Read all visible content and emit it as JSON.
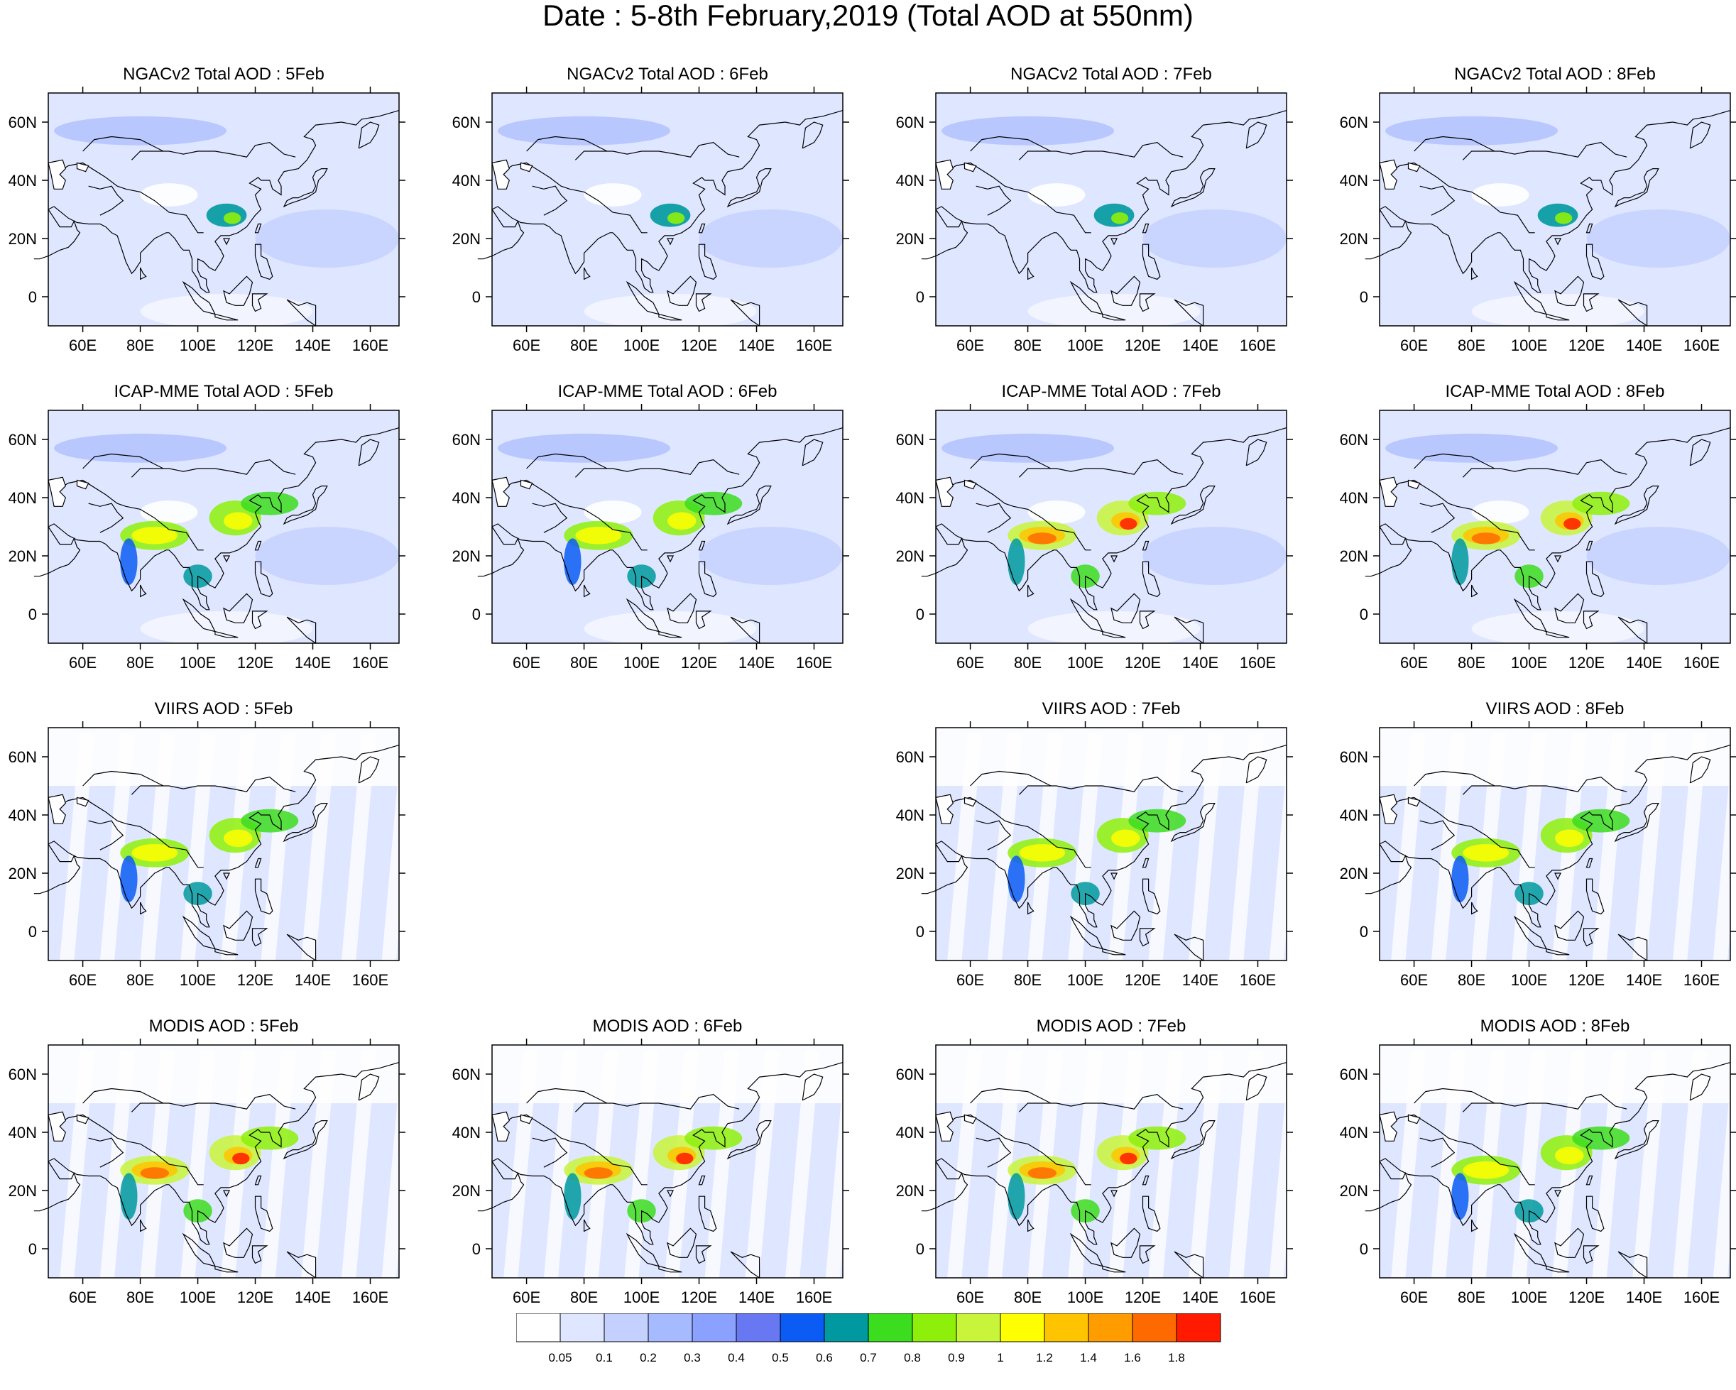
{
  "title": "Date : 5-8th February,2019 (Total AOD at 550nm)",
  "lon_ticks": [
    "60E",
    "80E",
    "100E",
    "120E",
    "140E",
    "160E"
  ],
  "lat_ticks": [
    "60N",
    "40N",
    "20N",
    "0"
  ],
  "lon_tick_values": [
    60,
    80,
    100,
    120,
    140,
    160
  ],
  "lat_tick_values": [
    60,
    40,
    20,
    0
  ],
  "map_extent": {
    "lon": [
      48,
      170
    ],
    "lat": [
      -10,
      70
    ]
  },
  "panels": [
    {
      "id": "ngac-5feb",
      "title": "NGACv2 Total AOD : 5Feb",
      "source": "model",
      "level": 1
    },
    {
      "id": "ngac-6feb",
      "title": "NGACv2 Total AOD : 6Feb",
      "source": "model",
      "level": 1
    },
    {
      "id": "ngac-7feb",
      "title": "NGACv2 Total AOD : 7Feb",
      "source": "model",
      "level": 1
    },
    {
      "id": "ngac-8feb",
      "title": "NGACv2 Total AOD : 8Feb",
      "source": "model",
      "level": 1
    },
    {
      "id": "icap-5feb",
      "title": "ICAP-MME Total AOD : 5Feb",
      "source": "model",
      "level": 2
    },
    {
      "id": "icap-6feb",
      "title": "ICAP-MME Total AOD : 6Feb",
      "source": "model",
      "level": 2
    },
    {
      "id": "icap-7feb",
      "title": "ICAP-MME Total AOD : 7Feb",
      "source": "model",
      "level": 3
    },
    {
      "id": "icap-8feb",
      "title": "ICAP-MME Total AOD : 8Feb",
      "source": "model",
      "level": 3
    },
    {
      "id": "viirs-5feb",
      "title": "VIIRS AOD : 5Feb",
      "source": "satellite",
      "level": 2
    },
    null,
    {
      "id": "viirs-7feb",
      "title": "VIIRS AOD : 7Feb",
      "source": "satellite",
      "level": 2
    },
    {
      "id": "viirs-8feb",
      "title": "VIIRS AOD : 8Feb",
      "source": "satellite",
      "level": 2
    },
    {
      "id": "modis-5feb",
      "title": "MODIS AOD : 5Feb",
      "source": "satellite",
      "level": 3
    },
    {
      "id": "modis-6feb",
      "title": "MODIS AOD : 6Feb",
      "source": "satellite",
      "level": 3
    },
    {
      "id": "modis-7feb",
      "title": "MODIS AOD : 7Feb",
      "source": "satellite",
      "level": 3
    },
    {
      "id": "modis-8feb",
      "title": "MODIS AOD : 8Feb",
      "source": "satellite",
      "level": 2
    }
  ],
  "colorbar": {
    "labels": [
      "0.05",
      "0.1",
      "0.2",
      "0.3",
      "0.4",
      "0.5",
      "0.6",
      "0.7",
      "0.8",
      "0.9",
      "1",
      "1.2",
      "1.4",
      "1.6",
      "1.8"
    ],
    "colors": [
      "#ffffff",
      "#dfe6ff",
      "#c4d1ff",
      "#a6baff",
      "#8ba1ff",
      "#6877f2",
      "#0a5cf5",
      "#00999f",
      "#3cdc1e",
      "#8ef00a",
      "#c8f53a",
      "#ffff00",
      "#ffc400",
      "#ff9d00",
      "#ff6a00",
      "#ff1a00"
    ]
  },
  "colors": {
    "background": "#ffffff",
    "coastline": "#000000",
    "low_aod": "#dfe6ff",
    "mid_aod": "#8ba1ff",
    "high_aod": "#ffff00",
    "extreme_aod": "#ff1a00"
  }
}
